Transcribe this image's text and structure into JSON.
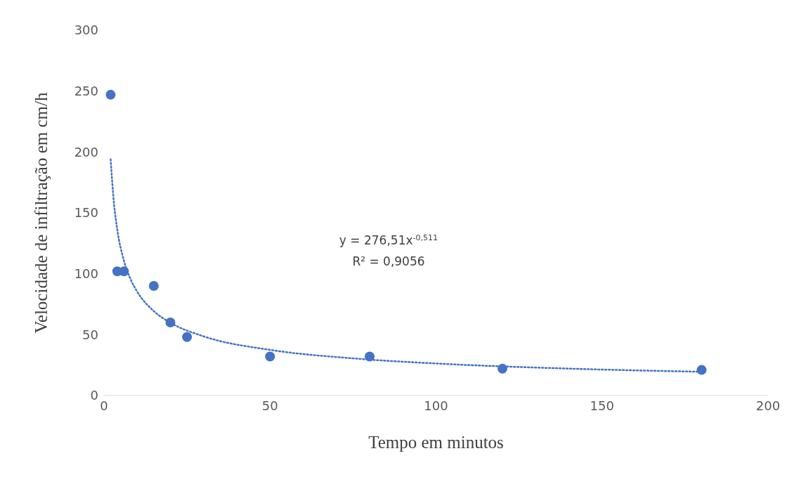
{
  "chart_data": {
    "type": "scatter",
    "xlabel": "Tempo em minutos",
    "ylabel": "Velocidade de infiltração em cm/h",
    "xlim": [
      0,
      200
    ],
    "xticks": [
      0,
      50,
      100,
      150,
      200
    ],
    "ylim": [
      0,
      300
    ],
    "yticks": [
      0,
      50,
      100,
      150,
      200,
      250,
      300
    ],
    "grid": false,
    "marker": "circle",
    "annotations": [
      "y = 276,51x$^{-0,511}$",
      "R² = 0,9056"
    ],
    "series": [
      {
        "color": "#4472c4",
        "x": [
          2,
          4,
          6,
          15,
          20,
          25,
          50,
          80,
          120,
          180
        ],
        "values": [
          247,
          102,
          102,
          90,
          60,
          48,
          32,
          32,
          22,
          21
        ]
      },
      {
        "type": "line",
        "color": "#4472c4",
        "line_style": "dotted",
        "marker": "none",
        "x": [
          2,
          3,
          4,
          6,
          8,
          10,
          15,
          20,
          30,
          50,
          75,
          100,
          140,
          180
        ],
        "values": [
          194,
          157.7,
          136.2,
          110.7,
          95.5,
          85.3,
          69.3,
          59.8,
          48.6,
          37.5,
          30.5,
          26.3,
          22.1,
          19.5
        ]
      }
    ]
  }
}
